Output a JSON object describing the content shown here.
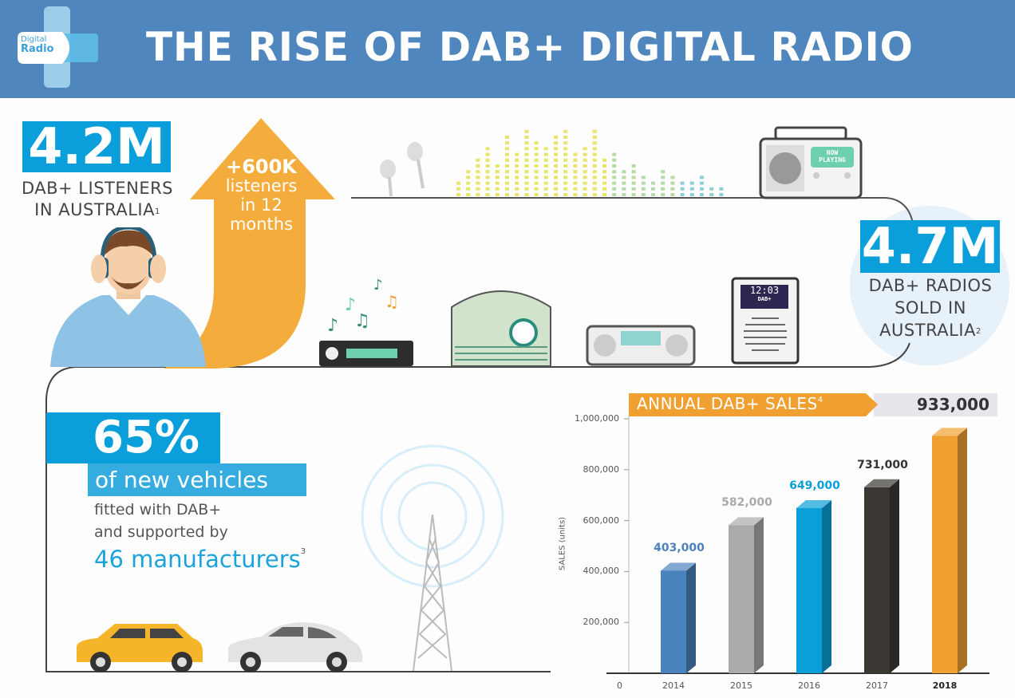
{
  "header": {
    "title": "THE RISE OF DAB+ DIGITAL RADIO",
    "logo_text_line1": "Digital",
    "logo_text_line2": "Radio"
  },
  "listeners": {
    "value": "4.2M",
    "label_line1": "DAB+ LISTENERS",
    "label_line2": "IN AUSTRALIA",
    "footnote": "1"
  },
  "growth": {
    "value": "+600K",
    "line1": "listeners",
    "line2": "in 12",
    "line3": "months"
  },
  "radios": {
    "value": "4.7M",
    "label_line1": "DAB+ RADIOS",
    "label_line2": "SOLD IN",
    "label_line3": "AUSTRALIA",
    "footnote": "2"
  },
  "devices": {
    "portable_screen_line1": "NOW",
    "portable_screen_line2": "PLAYING",
    "clock_time": "12:03",
    "clock_label": "DAB+"
  },
  "vehicles": {
    "value": "65%",
    "line1": "of new vehicles",
    "line2": "fitted with DAB+",
    "line3": "and supported by",
    "line4": "46 manufacturers",
    "footnote": "3"
  },
  "colors": {
    "header": "#4e86bd",
    "accent_blue": "#0a9fda",
    "orange": "#f0a030"
  },
  "chart_data": {
    "type": "bar",
    "title": "ANNUAL DAB+ SALES",
    "title_footnote": "4",
    "highlight_value": "933,000",
    "ylabel": "SALES (units)",
    "xlabel": "",
    "ylim": [
      0,
      1000000
    ],
    "yticks": [
      "0",
      "200,000",
      "400,000",
      "600,000",
      "800,000",
      "1,000,000"
    ],
    "categories": [
      "2014",
      "2015",
      "2016",
      "2017",
      "2018"
    ],
    "values": [
      403000,
      582000,
      649000,
      731000,
      933000
    ],
    "data_labels": [
      "403,000",
      "582,000",
      "649,000",
      "731,000",
      ""
    ],
    "bar_colors": [
      "#4a82bd",
      "#aaaaaa",
      "#0b9fd8",
      "#3a3733",
      "#f0a030"
    ],
    "label_colors": [
      "#4a82bd",
      "#aaaaaa",
      "#0b9fd8",
      "#333333",
      ""
    ],
    "grid": false
  }
}
